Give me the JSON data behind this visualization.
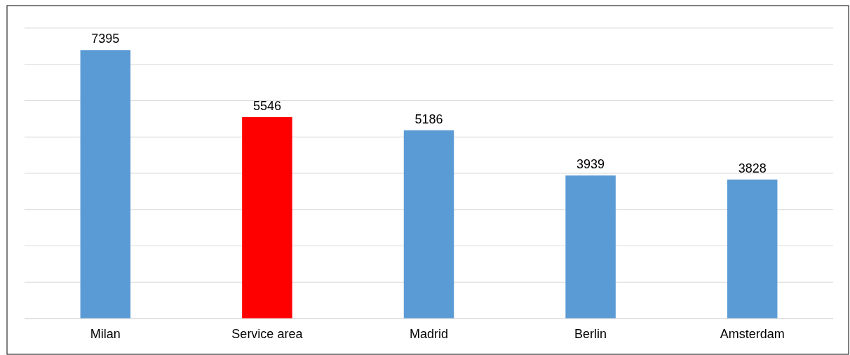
{
  "chart_data": {
    "type": "bar",
    "categories": [
      "Milan",
      "Service area",
      "Madrid",
      "Berlin",
      "Amsterdam"
    ],
    "values": [
      7395,
      5546,
      5186,
      3939,
      3828
    ],
    "colors": [
      "#5b9bd5",
      "#ff0000",
      "#5b9bd5",
      "#5b9bd5",
      "#5b9bd5"
    ],
    "ylim": [
      0,
      8000
    ],
    "yticks": [
      {
        "value": 0,
        "label": null
      },
      {
        "value": 1000,
        "label": null
      },
      {
        "value": 2000,
        "label": null
      },
      {
        "value": 3000,
        "label": null
      },
      {
        "value": 4000,
        "label": null
      },
      {
        "value": 5000,
        "label": null
      },
      {
        "value": 6000,
        "label": null
      },
      {
        "value": 7000,
        "label": null
      },
      {
        "value": 8000,
        "label": null
      }
    ],
    "grid": "y",
    "tick_labels": "x",
    "data_labels": true
  }
}
